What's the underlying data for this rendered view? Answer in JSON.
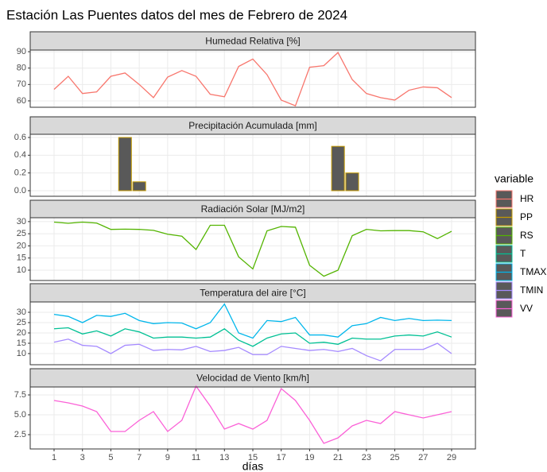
{
  "title": "Estación Las Puentes datos del mes de Febrero de 2024",
  "x_label": "días",
  "legend_title": "variable",
  "chart_data": [
    {
      "type": "line",
      "title": "Humedad Relativa [%]",
      "x": [
        1,
        2,
        3,
        4,
        5,
        6,
        7,
        8,
        9,
        10,
        11,
        12,
        13,
        14,
        15,
        16,
        17,
        18,
        19,
        20,
        21,
        22,
        23,
        24,
        25,
        26,
        27,
        28,
        29
      ],
      "xlim": [
        -0.68,
        30.68
      ],
      "xticks": [
        1,
        3,
        5,
        7,
        9,
        11,
        13,
        15,
        17,
        19,
        21,
        23,
        25,
        27,
        29
      ],
      "ylim": [
        56.1,
        91
      ],
      "yticks": [
        60,
        70,
        80,
        90
      ],
      "series": [
        {
          "name": "HR",
          "color": "#F8766D",
          "values": [
            67,
            75,
            64.5,
            65.5,
            75,
            77,
            70,
            62,
            74.5,
            78.5,
            75,
            64,
            62.5,
            81,
            85.5,
            76,
            60.5,
            57,
            80.5,
            81.5,
            89.5,
            73,
            64.5,
            62,
            60.5,
            66.5,
            68.5,
            68,
            62
          ]
        }
      ]
    },
    {
      "type": "bar",
      "title": "Precipitación Acumulada [mm]",
      "x": [
        1,
        2,
        3,
        4,
        5,
        6,
        7,
        8,
        9,
        10,
        11,
        12,
        13,
        14,
        15,
        16,
        17,
        18,
        19,
        20,
        21,
        22,
        23,
        24,
        25,
        26,
        27,
        28,
        29
      ],
      "xlim": [
        -0.68,
        30.68
      ],
      "xticks": [
        1,
        3,
        5,
        7,
        9,
        11,
        13,
        15,
        17,
        19,
        21,
        23,
        25,
        27,
        29
      ],
      "ylim": [
        -0.063,
        0.636
      ],
      "yticks": [
        {
          "value": 0,
          "label": "0.0"
        },
        0.2,
        0.4,
        0.6
      ],
      "series": [
        {
          "name": "PP",
          "color": "#C49A00",
          "values": [
            0,
            0,
            0,
            0,
            0,
            0.6,
            0.1,
            0,
            0,
            0,
            0,
            0,
            0,
            0,
            0,
            0,
            0,
            0,
            0,
            0,
            0.5,
            0.2,
            0,
            0,
            0,
            0,
            0,
            0,
            0
          ]
        }
      ]
    },
    {
      "type": "line",
      "title": "Radiación Solar [MJ/m2]",
      "x": [
        1,
        2,
        3,
        4,
        5,
        6,
        7,
        8,
        9,
        10,
        11,
        12,
        13,
        14,
        15,
        16,
        17,
        18,
        19,
        20,
        21,
        22,
        23,
        24,
        25,
        26,
        27,
        28,
        29
      ],
      "xlim": [
        -0.68,
        30.68
      ],
      "xticks": [
        1,
        3,
        5,
        7,
        9,
        11,
        13,
        15,
        17,
        19,
        21,
        23,
        25,
        27,
        29
      ],
      "ylim": [
        5.74,
        31.6
      ],
      "yticks": [
        10,
        15,
        20,
        25,
        30
      ],
      "series": [
        {
          "name": "RS",
          "color": "#53B400",
          "values": [
            29.8,
            29.3,
            29.8,
            29.4,
            26.8,
            26.9,
            26.8,
            26.4,
            24.8,
            24,
            18.5,
            28.5,
            28.5,
            15.5,
            10.5,
            26.2,
            28,
            27.7,
            12,
            7.5,
            10,
            24.2,
            26.8,
            26.2,
            26.3,
            26.3,
            25.8,
            23,
            26
          ]
        }
      ]
    },
    {
      "type": "line",
      "title": "Temperatura del aire [°C]",
      "x": [
        1,
        2,
        3,
        4,
        5,
        6,
        7,
        8,
        9,
        10,
        11,
        12,
        13,
        14,
        15,
        16,
        17,
        18,
        19,
        20,
        21,
        22,
        23,
        24,
        25,
        26,
        27,
        28,
        29
      ],
      "xlim": [
        -0.68,
        30.68
      ],
      "xticks": [
        1,
        3,
        5,
        7,
        9,
        11,
        13,
        15,
        17,
        19,
        21,
        23,
        25,
        27,
        29
      ],
      "ylim": [
        4.6,
        35
      ],
      "yticks": [
        10,
        15,
        20,
        25,
        30
      ],
      "series": [
        {
          "name": "TMAX",
          "color": "#00B6EB",
          "values": [
            29,
            28,
            25,
            28.5,
            28,
            29.5,
            26,
            24.5,
            25,
            24.8,
            22,
            25,
            34,
            20,
            17.5,
            26,
            25.5,
            27.5,
            19,
            19,
            18,
            23.5,
            24.5,
            27.5,
            26,
            27,
            26,
            26.2,
            26
          ]
        },
        {
          "name": "T",
          "color": "#00C094",
          "values": [
            22,
            22.5,
            19.5,
            21,
            18.5,
            22,
            20.5,
            17.5,
            18,
            18,
            17.5,
            18,
            22,
            16.5,
            13.5,
            17.5,
            19.5,
            20,
            15,
            15.5,
            14.5,
            17.5,
            17,
            17,
            18.5,
            19,
            18.5,
            20.5,
            18
          ]
        },
        {
          "name": "TMIN",
          "color": "#A58AFF",
          "values": [
            15.5,
            17,
            14,
            13.5,
            10,
            14,
            14.5,
            11.5,
            12,
            11.8,
            13.5,
            11,
            11.5,
            13,
            9.5,
            9.5,
            13.5,
            12.5,
            11.5,
            12,
            11,
            12.5,
            9,
            6.5,
            12,
            12,
            12,
            15,
            10
          ]
        }
      ]
    },
    {
      "type": "line",
      "title": "Velocidad de Viento [km/h]",
      "x": [
        1,
        2,
        3,
        4,
        5,
        6,
        7,
        8,
        9,
        10,
        11,
        12,
        13,
        14,
        15,
        16,
        17,
        18,
        19,
        20,
        21,
        22,
        23,
        24,
        25,
        26,
        27,
        28,
        29
      ],
      "xlim": [
        -0.68,
        30.68
      ],
      "xticks": [
        1,
        3,
        5,
        7,
        9,
        11,
        13,
        15,
        17,
        19,
        21,
        23,
        25,
        27,
        29
      ],
      "ylim": [
        0.7,
        8.5
      ],
      "yticks": [
        2.5,
        {
          "value": 5,
          "label": "5.0"
        },
        7.5
      ],
      "series": [
        {
          "name": "VV",
          "color": "#FB61D7",
          "values": [
            6.8,
            6.5,
            6.1,
            5.4,
            2.9,
            2.9,
            4.3,
            5.4,
            2.9,
            4.3,
            8.6,
            6.1,
            3.2,
            3.9,
            3.2,
            4.3,
            8.3,
            6.8,
            4.3,
            1.4,
            2.1,
            3.6,
            4.3,
            3.9,
            5.4,
            5,
            4.6,
            5,
            5.4
          ]
        }
      ]
    }
  ]
}
